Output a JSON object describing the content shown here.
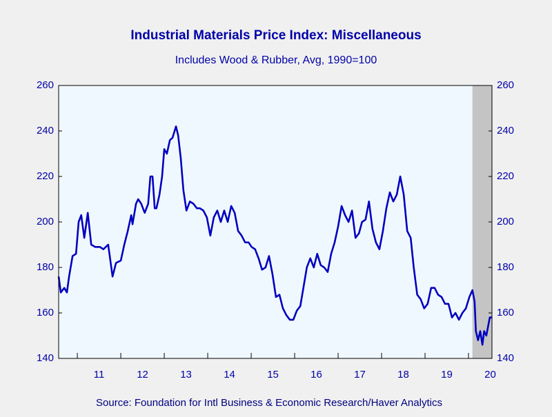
{
  "chart_data": {
    "type": "line",
    "title": "Industrial Materials Price Index: Miscellaneous",
    "subtitle": "Includes Wood & Rubber, Avg, 1990=100",
    "source": "Source:  Foundation for Intl Business & Economic Research/Haver Analytics",
    "x": [
      2010.57,
      2010.62,
      2010.7,
      2010.76,
      2010.81,
      2010.89,
      2010.97,
      2011.03,
      2011.09,
      2011.16,
      2011.24,
      2011.32,
      2011.41,
      2011.52,
      2011.6,
      2011.71,
      2011.81,
      2011.89,
      2012.0,
      2012.08,
      2012.16,
      2012.24,
      2012.27,
      2012.35,
      2012.4,
      2012.47,
      2012.55,
      2012.63,
      2012.68,
      2012.73,
      2012.78,
      2012.82,
      2012.89,
      2012.95,
      2013.0,
      2013.06,
      2013.13,
      2013.19,
      2013.27,
      2013.32,
      2013.38,
      2013.44,
      2013.51,
      2013.59,
      2013.67,
      2013.75,
      2013.82,
      2013.9,
      2013.98,
      2014.06,
      2014.14,
      2014.22,
      2014.3,
      2014.38,
      2014.46,
      2014.54,
      2014.62,
      2014.7,
      2014.78,
      2014.86,
      2014.94,
      2015.01,
      2015.09,
      2015.17,
      2015.25,
      2015.33,
      2015.41,
      2015.49,
      2015.57,
      2015.65,
      2015.73,
      2015.81,
      2015.89,
      2015.97,
      2016.05,
      2016.13,
      2016.21,
      2016.28,
      2016.36,
      2016.44,
      2016.52,
      2016.6,
      2016.68,
      2016.76,
      2016.84,
      2016.92,
      2017.0,
      2017.08,
      2017.16,
      2017.24,
      2017.32,
      2017.4,
      2017.48,
      2017.55,
      2017.63,
      2017.71,
      2017.79,
      2017.87,
      2017.95,
      2018.03,
      2018.11,
      2018.19,
      2018.27,
      2018.35,
      2018.43,
      2018.51,
      2018.59,
      2018.67,
      2018.74,
      2018.82,
      2018.9,
      2018.98,
      2019.06,
      2019.14,
      2019.22,
      2019.3,
      2019.38,
      2019.46,
      2019.54,
      2019.62,
      2019.7,
      2019.78,
      2019.86,
      2019.94,
      2020.02,
      2020.09,
      2020.14,
      2020.17,
      2020.22,
      2020.27,
      2020.32,
      2020.36,
      2020.41,
      2020.49,
      2020.54
    ],
    "series": [
      {
        "color": "#0000c0",
        "values": [
          176,
          169,
          171,
          169,
          176,
          185,
          186,
          200,
          203,
          193,
          204,
          190,
          189,
          189,
          188,
          190,
          176,
          182,
          183,
          190,
          196,
          203,
          199,
          208,
          210,
          208,
          204,
          208,
          220,
          220,
          206,
          206,
          212,
          220,
          232,
          230,
          236,
          237,
          242,
          238,
          228,
          214,
          205,
          209,
          208,
          206,
          206,
          205,
          202,
          194,
          202,
          205,
          200,
          205,
          200,
          207,
          204,
          196,
          194,
          191,
          191,
          189,
          188,
          184,
          179,
          180,
          185,
          177,
          167,
          168,
          162,
          159,
          157,
          157,
          161,
          163,
          172,
          180,
          184,
          180,
          186,
          181,
          180,
          178,
          186,
          191,
          198,
          207,
          203,
          200,
          205,
          193,
          195,
          200,
          201,
          209,
          197,
          191,
          188,
          196,
          206,
          213,
          209,
          212,
          220,
          212,
          196,
          193,
          180,
          168,
          166,
          162,
          164,
          171,
          171,
          168,
          167,
          164,
          164,
          158,
          160,
          157,
          160,
          162,
          167,
          170,
          165,
          152,
          148,
          152,
          146,
          152,
          150,
          158,
          158
        ]
      }
    ],
    "xlim": [
      2010.57,
      2020.54
    ],
    "xticks": [
      {
        "value": 2011,
        "label": "11"
      },
      {
        "value": 2012,
        "label": "12"
      },
      {
        "value": 2013,
        "label": "13"
      },
      {
        "value": 2014,
        "label": "14"
      },
      {
        "value": 2015,
        "label": "15"
      },
      {
        "value": 2016,
        "label": "16"
      },
      {
        "value": 2017,
        "label": "17"
      },
      {
        "value": 2018,
        "label": "18"
      },
      {
        "value": 2019,
        "label": "19"
      },
      {
        "value": 2020,
        "label": "20"
      }
    ],
    "ylim": [
      140,
      260
    ],
    "yticks": [
      140,
      160,
      180,
      200,
      220,
      240,
      260
    ],
    "y2lim": [
      140,
      260
    ],
    "y2ticks": [
      140,
      160,
      180,
      200,
      220,
      240,
      260
    ],
    "shaded": {
      "start": 2020.09,
      "end": 2020.54,
      "color": "#c4c4c4"
    },
    "plot_background": "#f0f8ff"
  }
}
